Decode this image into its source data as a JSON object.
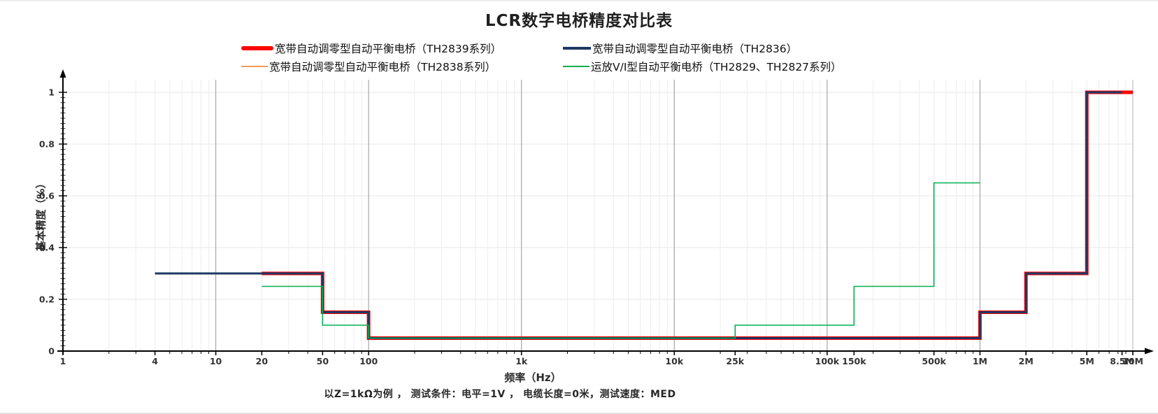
{
  "title": "LCR数字电桥精度对比表",
  "footnote": "以Z=1kΩ为例 ， 测试条件：电平=1V ， 电缆长度=0米，测试速度：MED",
  "legend": {
    "items": [
      {
        "id": "th2839",
        "label": "宽带自动调零型自动平衡电桥（TH2839系列）",
        "color": "#ff0000",
        "swatch_w": 46,
        "swatch_h": 6,
        "round": true
      },
      {
        "id": "th2836",
        "label": "宽带自动调零型自动平衡电桥（TH2836）",
        "color": "#1f3864",
        "swatch_w": 40,
        "swatch_h": 4,
        "round": false
      },
      {
        "id": "th2838",
        "label": "宽带自动调零型自动平衡电桥（TH2838系列）",
        "color": "#f09d57",
        "swatch_w": 38,
        "swatch_h": 2,
        "round": false
      },
      {
        "id": "th2829",
        "label": "运放V/I型自动平衡电桥（TH2829、TH2827系列）",
        "color": "#00b050",
        "swatch_w": 38,
        "swatch_h": 2,
        "round": false
      }
    ]
  },
  "chart_data": {
    "type": "line",
    "subtype": "step",
    "title": "LCR数字电桥精度对比表",
    "xlabel": "频率（Hz）",
    "ylabel": "基本精度（%）",
    "x_scale": "log",
    "xlim": [
      1,
      10000000
    ],
    "ylim": [
      0,
      1
    ],
    "grid": {
      "vertical": "log-minor-and-decade",
      "horizontal": "every 0.2",
      "legend_position": "top-center"
    },
    "x_ticks": [
      {
        "value": 1,
        "label": "1"
      },
      {
        "value": 4,
        "label": "4"
      },
      {
        "value": 10,
        "label": "10"
      },
      {
        "value": 20,
        "label": "20"
      },
      {
        "value": 50,
        "label": "50"
      },
      {
        "value": 100,
        "label": "100"
      },
      {
        "value": 1000,
        "label": "1k"
      },
      {
        "value": 10000,
        "label": "10k"
      },
      {
        "value": 25000,
        "label": "25k"
      },
      {
        "value": 100000,
        "label": "100k"
      },
      {
        "value": 150000,
        "label": "150k"
      },
      {
        "value": 500000,
        "label": "500k"
      },
      {
        "value": 1000000,
        "label": "1M"
      },
      {
        "value": 2000000,
        "label": "2M"
      },
      {
        "value": 5000000,
        "label": "5M"
      },
      {
        "value": 8500000,
        "label": "8.5M"
      },
      {
        "value": 10000000,
        "label": "10M"
      }
    ],
    "y_ticks": [
      {
        "value": 0,
        "label": "0"
      },
      {
        "value": 0.2,
        "label": "0.2"
      },
      {
        "value": 0.4,
        "label": "0.4"
      },
      {
        "value": 0.6,
        "label": "0.6"
      },
      {
        "value": 0.8,
        "label": "0.8"
      },
      {
        "value": 1,
        "label": "1"
      }
    ],
    "series": [
      {
        "model": "th2839",
        "name": "宽带自动调零型自动平衡电桥（TH2839系列）",
        "color": "#ff0000",
        "width": 5,
        "points": [
          [
            20,
            0.3
          ],
          [
            50,
            0.3
          ],
          [
            50,
            0.15
          ],
          [
            100,
            0.15
          ],
          [
            100,
            0.05
          ],
          [
            1000000,
            0.05
          ],
          [
            1000000,
            0.15
          ],
          [
            2000000,
            0.15
          ],
          [
            2000000,
            0.3
          ],
          [
            5000000,
            0.3
          ],
          [
            5000000,
            1
          ],
          [
            10000000,
            1
          ]
        ]
      },
      {
        "model": "th2838",
        "name": "宽带自动调零型自动平衡电桥（TH2838系列）",
        "color": "#f09d57",
        "width": 1.6,
        "points": [
          [
            20,
            0.3
          ],
          [
            50,
            0.3
          ],
          [
            50,
            0.15
          ],
          [
            100,
            0.15
          ],
          [
            100,
            0.05
          ],
          [
            1000000,
            0.05
          ]
        ]
      },
      {
        "model": "th2836",
        "name": "宽带自动调零型自动平衡电桥（TH2836）",
        "color": "#1f3864",
        "width": 3,
        "points": [
          [
            4,
            0.3
          ],
          [
            50,
            0.3
          ],
          [
            50,
            0.15
          ],
          [
            100,
            0.15
          ],
          [
            100,
            0.05
          ],
          [
            1000000,
            0.05
          ],
          [
            1000000,
            0.15
          ],
          [
            2000000,
            0.15
          ],
          [
            2000000,
            0.3
          ],
          [
            5000000,
            0.3
          ],
          [
            5000000,
            1
          ],
          [
            8500000,
            1
          ]
        ]
      },
      {
        "model": "th2829",
        "name": "运放V/I型自动平衡电桥（TH2829、TH2827系列）",
        "color": "#00b050",
        "width": 1.6,
        "points": [
          [
            20,
            0.25
          ],
          [
            50,
            0.25
          ],
          [
            50,
            0.1
          ],
          [
            100,
            0.1
          ],
          [
            100,
            0.05
          ],
          [
            25000,
            0.05
          ],
          [
            25000,
            0.1
          ],
          [
            150000,
            0.1
          ],
          [
            150000,
            0.25
          ],
          [
            500000,
            0.25
          ],
          [
            500000,
            0.65
          ],
          [
            1000000,
            0.65
          ]
        ]
      }
    ]
  }
}
